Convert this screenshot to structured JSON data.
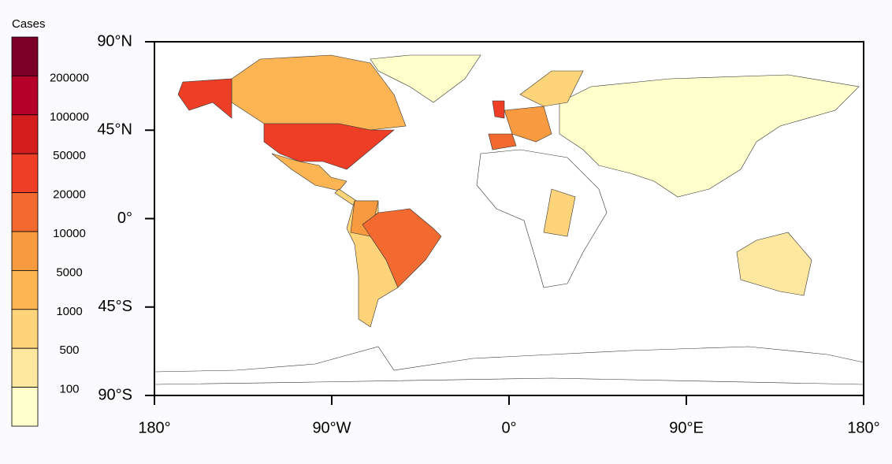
{
  "map": {
    "legend": {
      "title": "Cases",
      "colors": [
        "#7a0026",
        "#b5002a",
        "#d41e1e",
        "#ee3f26",
        "#f26a30",
        "#f89b40",
        "#fcb552",
        "#fdd47a",
        "#fee8a0",
        "#ffffcc"
      ],
      "labels": [
        "200000",
        "100000",
        "50000",
        "20000",
        "10000",
        "5000",
        "1000",
        "500",
        "100"
      ]
    },
    "xlim": [
      -180,
      180
    ],
    "ylim": [
      -90,
      90
    ],
    "xticks": [
      {
        "value": -180,
        "label": "180°"
      },
      {
        "value": -90,
        "label": "90°W"
      },
      {
        "value": 0,
        "label": "0°"
      },
      {
        "value": 90,
        "label": "90°E"
      },
      {
        "value": 180,
        "label": "180°"
      }
    ],
    "yticks": [
      {
        "value": 90,
        "label": "90°N"
      },
      {
        "value": 45,
        "label": "45°N"
      },
      {
        "value": 0,
        "label": "0°"
      },
      {
        "value": -45,
        "label": "45°S"
      },
      {
        "value": -90,
        "label": "90°S"
      }
    ]
  }
}
